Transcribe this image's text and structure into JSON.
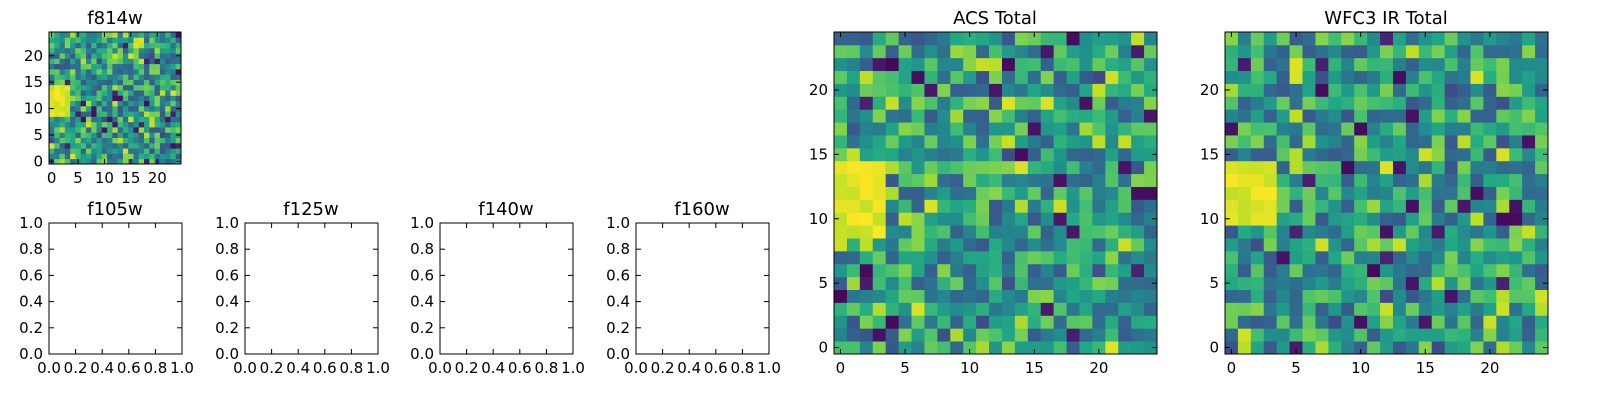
{
  "chart_data": [
    {
      "id": "f814w",
      "type": "heatmap",
      "title": "f814w",
      "grid_size": 25,
      "colormap": "viridis",
      "xticks": [
        "0",
        "5",
        "10",
        "15",
        "20"
      ],
      "yticks": [
        "0",
        "5",
        "10",
        "15",
        "20"
      ],
      "bright_region": {
        "x": [
          0,
          3
        ],
        "y": [
          9,
          14
        ]
      }
    },
    {
      "id": "f105w",
      "type": "heatmap",
      "title": "f105w",
      "empty": true,
      "xticks": [
        "0.0",
        "0.2",
        "0.4",
        "0.6",
        "0.8",
        "1.0"
      ],
      "yticks": [
        "0.0",
        "0.2",
        "0.4",
        "0.6",
        "0.8",
        "1.0"
      ]
    },
    {
      "id": "f125w",
      "type": "heatmap",
      "title": "f125w",
      "empty": true,
      "xticks": [
        "0.0",
        "0.2",
        "0.4",
        "0.6",
        "0.8",
        "1.0"
      ],
      "yticks": [
        "0.0",
        "0.2",
        "0.4",
        "0.6",
        "0.8",
        "1.0"
      ]
    },
    {
      "id": "f140w",
      "type": "heatmap",
      "title": "f140w",
      "empty": true,
      "xticks": [
        "0.0",
        "0.2",
        "0.4",
        "0.6",
        "0.8",
        "1.0"
      ],
      "yticks": [
        "0.0",
        "0.2",
        "0.4",
        "0.6",
        "0.8",
        "1.0"
      ]
    },
    {
      "id": "f160w",
      "type": "heatmap",
      "title": "f160w",
      "empty": true,
      "xticks": [
        "0.0",
        "0.2",
        "0.4",
        "0.6",
        "0.8",
        "1.0"
      ],
      "yticks": [
        "0.0",
        "0.2",
        "0.4",
        "0.6",
        "0.8",
        "1.0"
      ]
    },
    {
      "id": "acs-total",
      "type": "heatmap",
      "title": "ACS Total",
      "grid_size": 25,
      "colormap": "viridis",
      "xticks": [
        "0",
        "5",
        "10",
        "15",
        "20"
      ],
      "yticks": [
        "0",
        "5",
        "10",
        "15",
        "20"
      ],
      "bright_region": {
        "x": [
          0,
          3
        ],
        "y": [
          9,
          14
        ]
      }
    },
    {
      "id": "wfc3-ir-total",
      "type": "heatmap",
      "title": "WFC3 IR Total",
      "grid_size": 25,
      "colormap": "viridis",
      "xticks": [
        "0",
        "5",
        "10",
        "15",
        "20"
      ],
      "yticks": [
        "0",
        "5",
        "10",
        "15",
        "20"
      ],
      "bright_region": {
        "x": [
          0,
          3
        ],
        "y": [
          10,
          14
        ]
      }
    }
  ]
}
